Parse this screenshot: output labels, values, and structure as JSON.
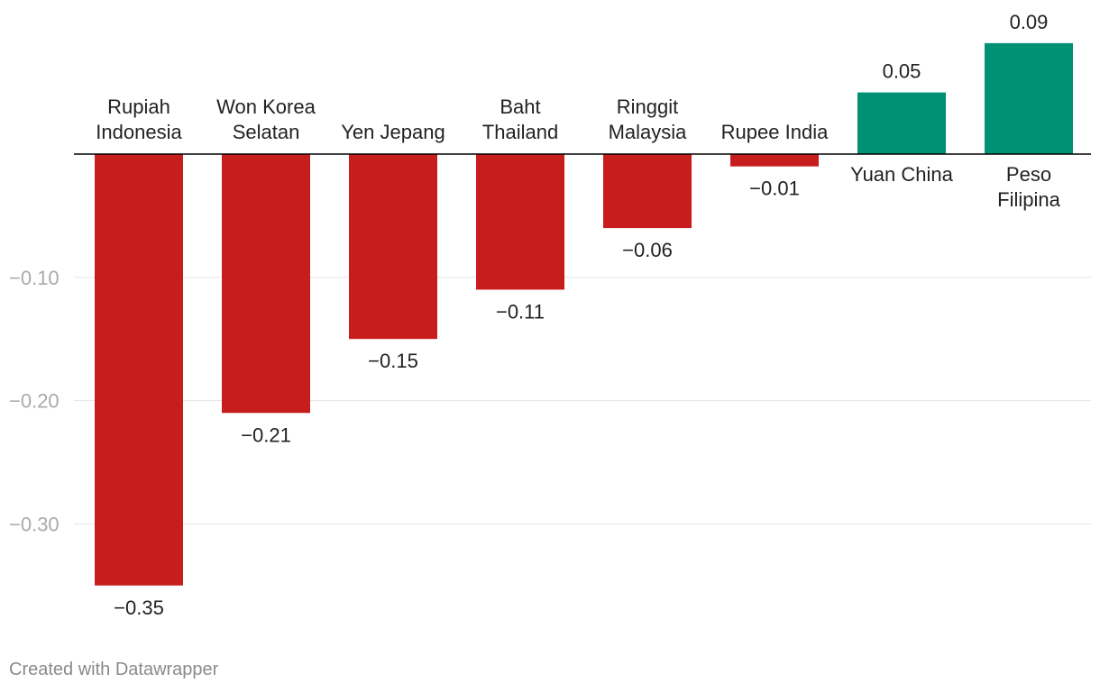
{
  "chart_data": {
    "type": "bar",
    "categories": [
      [
        "Rupiah",
        "Indonesia"
      ],
      [
        "Won Korea",
        "Selatan"
      ],
      [
        "Yen Jepang"
      ],
      [
        "Baht",
        "Thailand"
      ],
      [
        "Ringgit",
        "Malaysia"
      ],
      [
        "Rupee India"
      ],
      [
        "Yuan China"
      ],
      [
        "Peso",
        "Filipina"
      ]
    ],
    "values": [
      -0.35,
      -0.21,
      -0.15,
      -0.11,
      -0.06,
      -0.01,
      0.05,
      0.09
    ],
    "value_labels": [
      "−0.35",
      "−0.21",
      "−0.15",
      "−0.11",
      "−0.06",
      "−0.01",
      "0.05",
      "0.09"
    ],
    "y_ticks": [
      -0.1,
      -0.2,
      -0.3
    ],
    "y_tick_labels": [
      "−0.10",
      "−0.20",
      "−0.30"
    ],
    "ylim": [
      -0.35,
      0.09
    ],
    "grid": true,
    "colors": {
      "negative": "#c71e1d",
      "positive": "#009175",
      "gridline": "#e5e5e5",
      "zero_line": "#000000",
      "tick_label": "#aaaaaa",
      "label": "#222222"
    }
  },
  "footer": {
    "credit": "Created with Datawrapper"
  }
}
